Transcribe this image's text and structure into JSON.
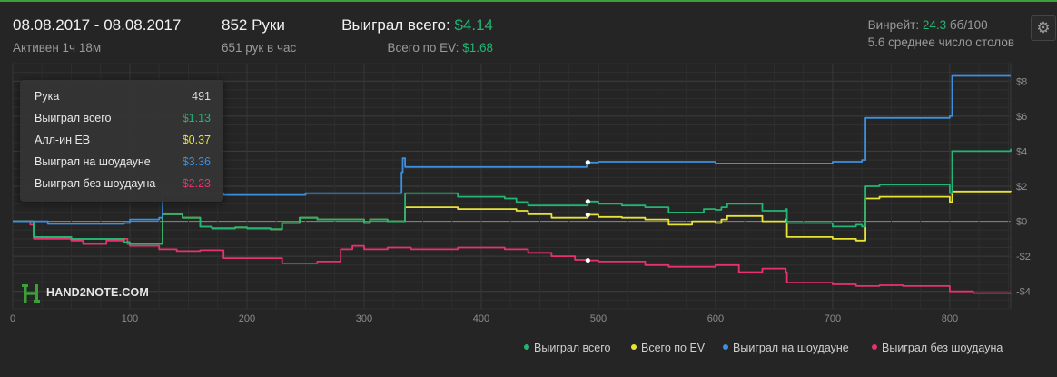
{
  "header": {
    "date_range": "08.08.2017 - 08.08.2017",
    "active": "Активен 1ч 18м",
    "hands": "852 Руки",
    "hands_per_hour": "651 рук в час",
    "won_total_label": "Выиграл всего:",
    "won_total_value": "$4.14",
    "ev_total_label": "Всего по EV:",
    "ev_total_value": "$1.68",
    "winrate_label": "Винрейт:",
    "winrate_value": "24.3",
    "winrate_unit": "бб/100",
    "avg_tables": "5.6 среднее число столов"
  },
  "icons": {
    "settings": "gear-icon",
    "logo": "hand2note-logo-icon"
  },
  "logo_text": "HAND2NOTE.COM",
  "tooltip": {
    "rows": [
      {
        "label": "Рука",
        "value": "491",
        "color": "#dcdcdc"
      },
      {
        "label": "Выиграл всего",
        "value": "$1.13",
        "color": "#22b573"
      },
      {
        "label": "Алл-ин EB",
        "value": "$0.37",
        "color": "#e8e337"
      },
      {
        "label": "Выиграл на шоудауне",
        "value": "$3.36",
        "color": "#3d8fe0"
      },
      {
        "label": "Выиграл без шоудауна",
        "value": "-$2.23",
        "color": "#e6336f"
      }
    ]
  },
  "colors": {
    "background": "#252525",
    "accent_top": "#3c9f3a",
    "won_total": "#22b573",
    "ev": "#e8e337",
    "showdown": "#3d8fe0",
    "non_showdown": "#e6336f",
    "grid": "#3a3a3a",
    "zero_line": "#8a8a8a"
  },
  "chart_data": {
    "type": "line",
    "xlim": [
      0,
      852
    ],
    "ylim": [
      -5,
      9
    ],
    "x_ticks": [
      0,
      100,
      200,
      300,
      400,
      500,
      600,
      700,
      800
    ],
    "y_ticks": [
      -4,
      -2,
      0,
      2,
      4,
      6,
      8
    ],
    "y_tick_labels": [
      "-$4",
      "-$2",
      "$0",
      "$2",
      "$4",
      "$6",
      "$8"
    ],
    "highlight_x": 491,
    "legend_position": "bottom-right",
    "grid": true,
    "series": [
      {
        "name": "Выиграл всего",
        "color": "#22b573",
        "x": [
          0,
          15,
          18,
          50,
          95,
          100,
          125,
          128,
          145,
          160,
          170,
          190,
          200,
          220,
          230,
          240,
          245,
          260,
          280,
          300,
          305,
          320,
          332,
          335,
          380,
          420,
          430,
          440,
          480,
          491,
          500,
          520,
          540,
          560,
          590,
          600,
          605,
          610,
          640,
          660,
          661,
          700,
          720,
          725,
          728,
          740,
          800,
          802,
          852
        ],
        "y": [
          0,
          0,
          -0.9,
          -1.0,
          -1.2,
          -1.3,
          -1.3,
          0.4,
          0.2,
          -0.3,
          -0.4,
          -0.35,
          -0.4,
          -0.45,
          -0.1,
          -0.1,
          0.2,
          0.1,
          0.1,
          -0.1,
          0.1,
          0.0,
          0.0,
          1.6,
          1.4,
          1.3,
          1.1,
          0.9,
          0.9,
          1.13,
          1.0,
          0.9,
          0.8,
          0.5,
          0.7,
          0.65,
          0.8,
          1.0,
          0.6,
          0.7,
          -0.1,
          -0.3,
          -0.2,
          -0.3,
          2.0,
          2.1,
          1.6,
          4.0,
          4.14
        ]
      },
      {
        "name": "Всего по EV",
        "color": "#e8e337",
        "x": [
          0,
          15,
          18,
          50,
          95,
          100,
          125,
          128,
          145,
          160,
          170,
          190,
          200,
          220,
          230,
          240,
          245,
          260,
          280,
          300,
          305,
          320,
          332,
          335,
          380,
          420,
          430,
          440,
          460,
          480,
          491,
          500,
          520,
          540,
          560,
          580,
          600,
          605,
          610,
          640,
          660,
          661,
          700,
          720,
          725,
          728,
          740,
          800,
          802,
          852
        ],
        "y": [
          0,
          0,
          -0.9,
          -1.0,
          -1.2,
          -1.3,
          -1.3,
          0.4,
          0.2,
          -0.3,
          -0.4,
          -0.35,
          -0.4,
          -0.45,
          -0.1,
          -0.1,
          0.2,
          0.1,
          0.1,
          -0.1,
          0.1,
          0.0,
          0.0,
          0.8,
          0.7,
          0.7,
          0.6,
          0.4,
          0.2,
          0.2,
          0.37,
          0.25,
          0.2,
          0.1,
          -0.2,
          0.0,
          -0.1,
          0.1,
          0.3,
          0.0,
          0.1,
          -0.9,
          -1.0,
          -1.1,
          -1.1,
          1.3,
          1.4,
          1.1,
          1.7,
          1.68
        ]
      },
      {
        "name": "Выиграл на шоудауне",
        "color": "#3d8fe0",
        "x": [
          0,
          30,
          95,
          100,
          125,
          128,
          180,
          250,
          330,
          332,
          333,
          335,
          480,
          490,
          491,
          500,
          560,
          600,
          700,
          725,
          728,
          800,
          802,
          810,
          852
        ],
        "y": [
          0,
          -0.15,
          -0.1,
          0.1,
          0.2,
          1.6,
          1.5,
          1.6,
          1.6,
          2.8,
          3.6,
          3.1,
          3.1,
          3.36,
          3.36,
          3.4,
          3.4,
          3.3,
          3.4,
          3.5,
          5.9,
          6.0,
          8.3,
          8.3,
          8.3
        ]
      },
      {
        "name": "Выиграл без шоудауна",
        "color": "#e6336f",
        "x": [
          0,
          15,
          18,
          50,
          60,
          80,
          95,
          98,
          100,
          125,
          140,
          160,
          180,
          200,
          230,
          260,
          280,
          290,
          300,
          320,
          340,
          380,
          420,
          440,
          460,
          480,
          491,
          500,
          540,
          560,
          600,
          620,
          640,
          660,
          661,
          700,
          720,
          740,
          760,
          800,
          820,
          852
        ],
        "y": [
          0,
          -0.2,
          -1.0,
          -1.1,
          -1.3,
          -1.1,
          -1.0,
          -1.3,
          -1.4,
          -1.6,
          -1.7,
          -1.65,
          -2.1,
          -2.1,
          -2.4,
          -2.3,
          -1.6,
          -1.4,
          -1.6,
          -1.5,
          -1.6,
          -1.5,
          -1.6,
          -1.8,
          -2.0,
          -2.2,
          -2.23,
          -2.3,
          -2.5,
          -2.6,
          -2.5,
          -2.9,
          -2.7,
          -2.9,
          -3.5,
          -3.6,
          -3.7,
          -3.65,
          -3.7,
          -4.0,
          -4.1,
          -4.14
        ]
      }
    ]
  }
}
